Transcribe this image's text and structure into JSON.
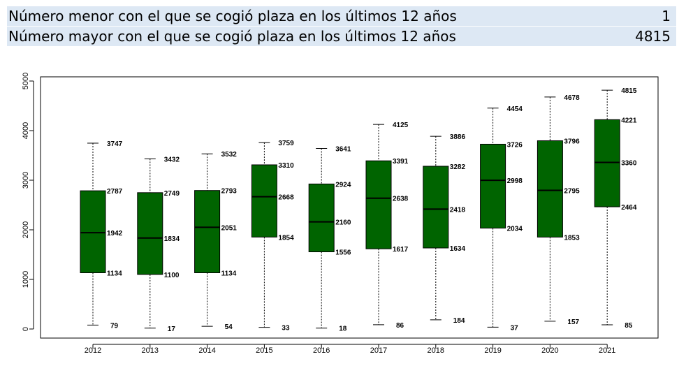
{
  "header": {
    "rows": [
      {
        "label": "Número menor con el que se cogió plaza en los últimos 12 años",
        "value": "1"
      },
      {
        "label": "Número mayor con el que se cogió plaza en los últimos 12 años",
        "value": "4815"
      }
    ]
  },
  "colors": {
    "box_fill": "#006400",
    "header_bg": "#dde8f4"
  },
  "chart_data": {
    "type": "boxplot",
    "title": "",
    "xlabel": "",
    "ylabel": "",
    "ylim": [
      0,
      5000
    ],
    "yticks": [
      0,
      1000,
      2000,
      3000,
      4000,
      5000
    ],
    "grid": false,
    "categories": [
      "2012",
      "2013",
      "2014",
      "2015",
      "2016",
      "2017",
      "2018",
      "2019",
      "2020",
      "2021"
    ],
    "boxes": [
      {
        "min": 79,
        "q1": 1134,
        "median": 1942,
        "q3": 2787,
        "max": 3747
      },
      {
        "min": 17,
        "q1": 1100,
        "median": 1834,
        "q3": 2749,
        "max": 3432
      },
      {
        "min": 54,
        "q1": 1134,
        "median": 2051,
        "q3": 2793,
        "max": 3532
      },
      {
        "min": 33,
        "q1": 1854,
        "median": 2668,
        "q3": 3310,
        "max": 3759
      },
      {
        "min": 18,
        "q1": 1556,
        "median": 2160,
        "q3": 2924,
        "max": 3641
      },
      {
        "min": 86,
        "q1": 1617,
        "median": 2638,
        "q3": 3391,
        "max": 4125
      },
      {
        "min": 184,
        "q1": 1634,
        "median": 2418,
        "q3": 3282,
        "max": 3886
      },
      {
        "min": 37,
        "q1": 2034,
        "median": 2998,
        "q3": 3726,
        "max": 4454
      },
      {
        "min": 157,
        "q1": 1853,
        "median": 2795,
        "q3": 3796,
        "max": 4678
      },
      {
        "min": 85,
        "q1": 2464,
        "median": 3360,
        "q3": 4221,
        "max": 4815
      }
    ]
  }
}
